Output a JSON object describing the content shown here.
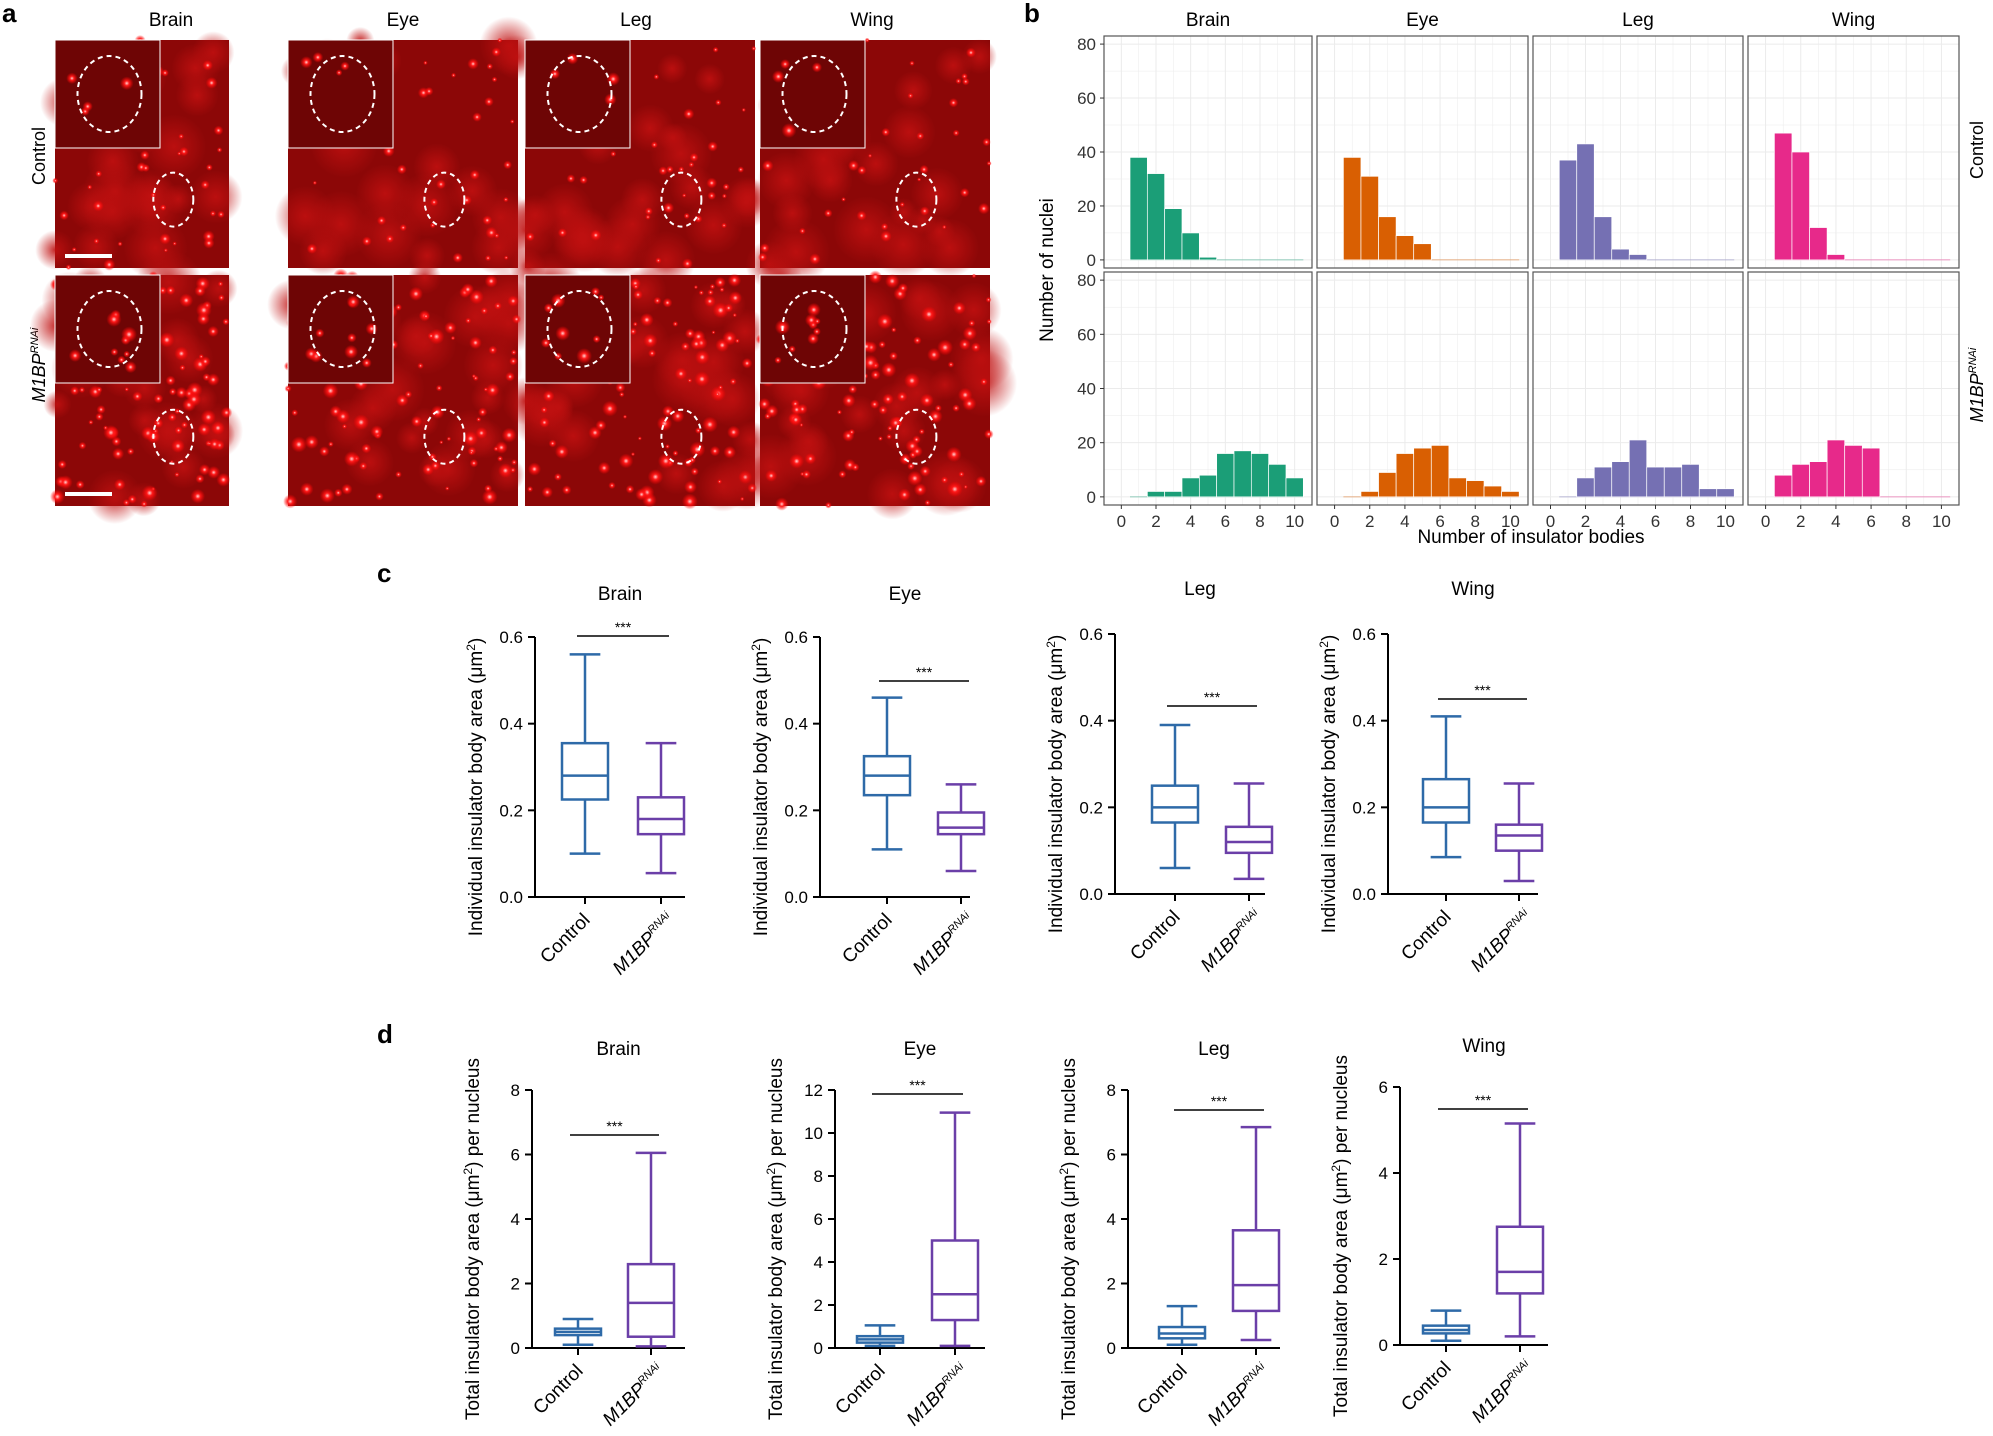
{
  "panel_labels": {
    "a": "a",
    "b": "b",
    "c": "c",
    "d": "d"
  },
  "tissues": [
    "Brain",
    "Eye",
    "Leg",
    "Wing"
  ],
  "conditions": [
    "Control",
    "M1BP",
    "RNAi"
  ],
  "colors": {
    "control_box": "#2e6aa8",
    "rnai_box": "#6b3fa8",
    "micro_bg": "#8c0707",
    "micro_spot": "#ff2020"
  },
  "chart_data": [
    {
      "type": "bar",
      "panel": "b",
      "xlabel": "Number of insulator bodies",
      "ylabel": "Number of nuclei",
      "xlim": [
        -1,
        11
      ],
      "ylim": [
        -3,
        83
      ],
      "xticks": [
        0,
        2,
        4,
        6,
        8,
        10
      ],
      "yticks": [
        0,
        20,
        40,
        60,
        80
      ],
      "grid": true,
      "row_labels": [
        "Control",
        "M1BP",
        "RNAi"
      ],
      "facets": [
        {
          "row": 0,
          "col": 0,
          "color": "#1b9e77",
          "x": [
            1,
            2,
            3,
            4,
            5,
            6,
            7,
            8,
            9,
            10
          ],
          "values": [
            38,
            32,
            19,
            10,
            1,
            0,
            0,
            0,
            0,
            0
          ]
        },
        {
          "row": 0,
          "col": 1,
          "color": "#d95f02",
          "x": [
            1,
            2,
            3,
            4,
            5,
            6,
            7,
            8,
            9,
            10
          ],
          "values": [
            38,
            31,
            16,
            9,
            6,
            0,
            0,
            0,
            0,
            0
          ]
        },
        {
          "row": 0,
          "col": 2,
          "color": "#7570b3",
          "x": [
            1,
            2,
            3,
            4,
            5,
            6,
            7,
            8,
            9,
            10
          ],
          "values": [
            37,
            43,
            16,
            4,
            2,
            0,
            0,
            0,
            0,
            0
          ]
        },
        {
          "row": 0,
          "col": 3,
          "color": "#e7298a",
          "x": [
            1,
            2,
            3,
            4,
            5,
            6
          ],
          "values": [
            47,
            40,
            12,
            2,
            0,
            0
          ]
        },
        {
          "row": 1,
          "col": 0,
          "color": "#1b9e77",
          "x": [
            1,
            2,
            3,
            4,
            5,
            6,
            7,
            8,
            9,
            10
          ],
          "values": [
            0,
            2,
            2,
            7,
            8,
            16,
            17,
            16,
            12,
            7
          ]
        },
        {
          "row": 1,
          "col": 1,
          "color": "#d95f02",
          "x": [
            1,
            2,
            3,
            4,
            5,
            6,
            7,
            8,
            9,
            10
          ],
          "values": [
            0,
            2,
            9,
            16,
            18,
            19,
            7,
            6,
            4,
            2
          ]
        },
        {
          "row": 1,
          "col": 2,
          "color": "#7570b3",
          "x": [
            1,
            2,
            3,
            4,
            5,
            6,
            7,
            8,
            9,
            10
          ],
          "values": [
            0,
            7,
            11,
            13,
            21,
            11,
            11,
            12,
            3,
            3
          ]
        },
        {
          "row": 1,
          "col": 3,
          "color": "#e7298a",
          "x": [
            1,
            2,
            3,
            4,
            5,
            6
          ],
          "values": [
            8,
            12,
            13,
            21,
            19,
            18
          ]
        }
      ]
    },
    {
      "type": "box",
      "panel": "c",
      "ylabel": "Individual insulator body area (μm2)",
      "significance": "***",
      "facets": [
        {
          "title": "Brain",
          "ylim": [
            0,
            0.6
          ],
          "yticks": [
            "0.0",
            "0.2",
            "0.4",
            "0.6"
          ],
          "boxes": [
            {
              "min": 0.1,
              "q1": 0.225,
              "median": 0.28,
              "q3": 0.355,
              "max": 0.56
            },
            {
              "min": 0.055,
              "q1": 0.145,
              "median": 0.18,
              "q3": 0.23,
              "max": 0.355
            }
          ]
        },
        {
          "title": "Eye",
          "ylim": [
            0,
            0.6
          ],
          "yticks": [
            "0.0",
            "0.2",
            "0.4",
            "0.6"
          ],
          "boxes": [
            {
              "min": 0.11,
              "q1": 0.235,
              "median": 0.28,
              "q3": 0.325,
              "max": 0.46
            },
            {
              "min": 0.06,
              "q1": 0.145,
              "median": 0.16,
              "q3": 0.195,
              "max": 0.26
            }
          ]
        },
        {
          "title": "Leg",
          "ylim": [
            0,
            0.6
          ],
          "yticks": [
            "0.0",
            "0.2",
            "0.4",
            "0.6"
          ],
          "boxes": [
            {
              "min": 0.06,
              "q1": 0.165,
              "median": 0.2,
              "q3": 0.25,
              "max": 0.39
            },
            {
              "min": 0.035,
              "q1": 0.095,
              "median": 0.12,
              "q3": 0.155,
              "max": 0.255
            }
          ]
        },
        {
          "title": "Wing",
          "ylim": [
            0,
            0.6
          ],
          "yticks": [
            "0.0",
            "0.2",
            "0.4",
            "0.6"
          ],
          "boxes": [
            {
              "min": 0.085,
              "q1": 0.165,
              "median": 0.2,
              "q3": 0.265,
              "max": 0.41
            },
            {
              "min": 0.03,
              "q1": 0.1,
              "median": 0.135,
              "q3": 0.16,
              "max": 0.255
            }
          ]
        }
      ]
    },
    {
      "type": "box",
      "panel": "d",
      "ylabel": "Total insulator body area (μm2) per nucleus",
      "significance": "***",
      "facets": [
        {
          "title": "Brain",
          "ylim": [
            0,
            8
          ],
          "yticks": [
            "0",
            "2",
            "4",
            "6",
            "8"
          ],
          "boxes": [
            {
              "min": 0.1,
              "q1": 0.4,
              "median": 0.5,
              "q3": 0.6,
              "max": 0.9
            },
            {
              "min": 0.05,
              "q1": 0.35,
              "median": 1.4,
              "q3": 2.6,
              "max": 6.05
            }
          ]
        },
        {
          "title": "Eye",
          "ylim": [
            0,
            12
          ],
          "yticks": [
            "0",
            "2",
            "4",
            "6",
            "8",
            "10",
            "12"
          ],
          "boxes": [
            {
              "min": 0.1,
              "q1": 0.25,
              "median": 0.4,
              "q3": 0.55,
              "max": 1.05
            },
            {
              "min": 0.1,
              "q1": 1.3,
              "median": 2.5,
              "q3": 5.0,
              "max": 10.95
            }
          ]
        },
        {
          "title": "Leg",
          "ylim": [
            0,
            8
          ],
          "yticks": [
            "0",
            "2",
            "4",
            "6",
            "8"
          ],
          "boxes": [
            {
              "min": 0.1,
              "q1": 0.3,
              "median": 0.45,
              "q3": 0.65,
              "max": 1.3
            },
            {
              "min": 0.25,
              "q1": 1.15,
              "median": 1.95,
              "q3": 3.65,
              "max": 6.85
            }
          ]
        },
        {
          "title": "Wing",
          "ylim": [
            0,
            6
          ],
          "yticks": [
            "0",
            "2",
            "4",
            "6"
          ],
          "boxes": [
            {
              "min": 0.1,
              "q1": 0.27,
              "median": 0.35,
              "q3": 0.45,
              "max": 0.8
            },
            {
              "min": 0.2,
              "q1": 1.2,
              "median": 1.7,
              "q3": 2.75,
              "max": 5.15
            }
          ]
        }
      ]
    }
  ]
}
